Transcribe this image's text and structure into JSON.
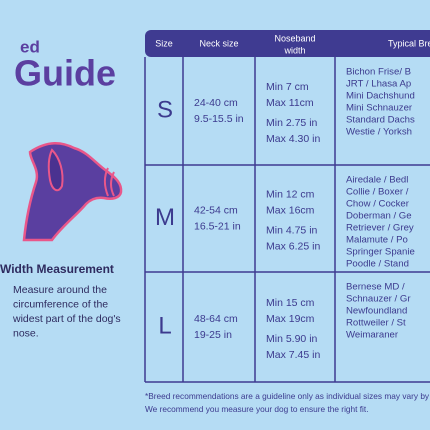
{
  "header": {
    "title_fragment": "ed",
    "title": "Guide"
  },
  "measurement": {
    "heading": "Width Measurement",
    "text": [
      "Measure around the",
      "circumference of the",
      "widest part of the dog's",
      "nose."
    ]
  },
  "table": {
    "columns": [
      "Size",
      "Neck size",
      [
        "Noseband",
        "width"
      ],
      "Typical Bre"
    ],
    "rows": [
      {
        "size": "S",
        "neck": [
          "24-40 cm",
          "9.5-15.5 in"
        ],
        "noseband": [
          "Min 7 cm",
          "Max 11cm",
          "Min 2.75 in",
          "Max 4.30 in"
        ],
        "breeds": [
          "Bichon Frise/ B",
          "JRT / Lhasa Ap",
          "Mini Dachshund",
          "Mini Schnauzer",
          "Standard Dachs",
          "Westie / Yorksh"
        ]
      },
      {
        "size": "M",
        "neck": [
          "42-54 cm",
          "16.5-21 in"
        ],
        "noseband": [
          "Min 12 cm",
          "Max 16cm",
          "Min 4.75 in",
          "Max 6.25 in"
        ],
        "breeds": [
          "Airedale / Bedl",
          "Collie / Boxer /",
          "Chow / Cocker",
          "Doberman / Ge",
          "Retriever / Grey",
          "Malamute / Po",
          "Springer Spanie",
          "Poodle / Stand"
        ]
      },
      {
        "size": "L",
        "neck": [
          "48-64 cm",
          "19-25 in"
        ],
        "noseband": [
          "Min 15 cm",
          "Max 19cm",
          "Min 5.90 in",
          "Max 7.45 in"
        ],
        "breeds": [
          "Bernese MD /",
          "Schnauzer / Gr",
          "Newfoundland",
          "Rottweiler / St",
          "Weimaraner"
        ]
      }
    ]
  },
  "footnote": [
    "*Breed recommendations are a guideline only as individual sizes may vary by c",
    "We recommend you measure your dog to ensure the right fit."
  ]
}
